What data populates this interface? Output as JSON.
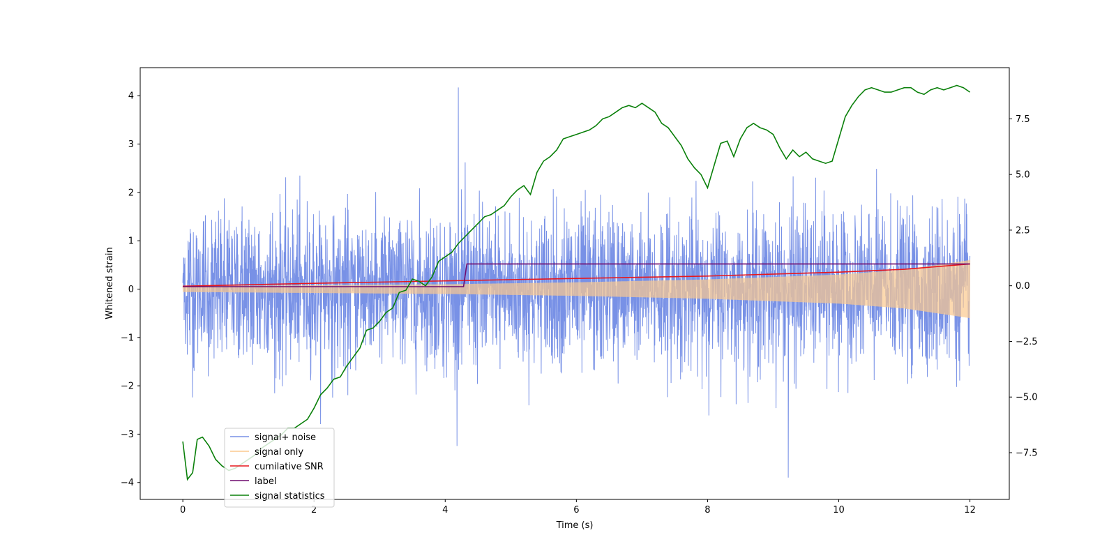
{
  "chart_data": {
    "type": "line",
    "xlabel": "Time (s)",
    "ylabel": "Whitened strain",
    "y2label": "",
    "xlim": [
      -0.65,
      12.6
    ],
    "ylim": [
      -4.35,
      4.58
    ],
    "y2lim": [
      -9.6,
      9.8
    ],
    "xticks": [
      0,
      2,
      4,
      6,
      8,
      10,
      12
    ],
    "yticks": [
      -4,
      -3,
      -2,
      -1,
      0,
      1,
      2,
      3,
      4
    ],
    "y2ticks": [
      -7.5,
      -5.0,
      -2.5,
      0.0,
      2.5,
      5.0,
      7.5
    ],
    "legend_position": "lower left",
    "series": [
      {
        "name": "signal+ noise",
        "axis": "left",
        "color": "#7891e6",
        "kind": "noise",
        "x_range": [
          0,
          12
        ],
        "typical_envelope": [
          -1.6,
          1.6
        ],
        "peak_max": 4.17,
        "peak_min": -3.9
      },
      {
        "name": "signal only",
        "axis": "left",
        "color": "#fbc98e",
        "kind": "chirp",
        "x": [
          0,
          2,
          4,
          6,
          8,
          10,
          11,
          12
        ],
        "amplitude": [
          0.06,
          0.08,
          0.1,
          0.14,
          0.2,
          0.3,
          0.4,
          0.6
        ]
      },
      {
        "name": "cumilative SNR",
        "axis": "left",
        "color": "#e8171c",
        "x": [
          0,
          2,
          4,
          6,
          8,
          10,
          11,
          12
        ],
        "values": [
          0.06,
          0.12,
          0.17,
          0.22,
          0.27,
          0.35,
          0.41,
          0.52
        ]
      },
      {
        "name": "label",
        "axis": "left",
        "color": "#6e0a6e",
        "x": [
          0,
          4.28,
          4.33,
          12
        ],
        "values": [
          0.05,
          0.05,
          0.52,
          0.52
        ]
      },
      {
        "name": "signal statistics",
        "axis": "right",
        "color": "#0a800a",
        "x": [
          0,
          0.07,
          0.15,
          0.22,
          0.3,
          0.4,
          0.5,
          0.6,
          0.7,
          0.8,
          0.9,
          1.0,
          1.1,
          1.2,
          1.3,
          1.4,
          1.5,
          1.6,
          1.7,
          1.8,
          1.9,
          2.0,
          2.1,
          2.2,
          2.3,
          2.4,
          2.5,
          2.6,
          2.7,
          2.8,
          2.9,
          3.0,
          3.1,
          3.2,
          3.3,
          3.4,
          3.5,
          3.6,
          3.7,
          3.8,
          3.9,
          4.0,
          4.1,
          4.2,
          4.3,
          4.4,
          4.5,
          4.6,
          4.7,
          4.8,
          4.9,
          5.0,
          5.1,
          5.2,
          5.3,
          5.4,
          5.5,
          5.6,
          5.7,
          5.8,
          5.9,
          6.0,
          6.1,
          6.2,
          6.3,
          6.4,
          6.5,
          6.6,
          6.7,
          6.8,
          6.9,
          7.0,
          7.1,
          7.2,
          7.3,
          7.4,
          7.5,
          7.6,
          7.7,
          7.8,
          7.9,
          8.0,
          8.1,
          8.2,
          8.3,
          8.4,
          8.5,
          8.6,
          8.7,
          8.8,
          8.9,
          9.0,
          9.1,
          9.2,
          9.3,
          9.4,
          9.5,
          9.6,
          9.7,
          9.8,
          9.9,
          10.0,
          10.1,
          10.2,
          10.3,
          10.4,
          10.5,
          10.6,
          10.7,
          10.8,
          10.9,
          11.0,
          11.1,
          11.2,
          11.3,
          11.4,
          11.5,
          11.6,
          11.7,
          11.8,
          11.9,
          12.0
        ],
        "values": [
          -7.0,
          -8.7,
          -8.4,
          -6.9,
          -6.8,
          -7.2,
          -7.8,
          -8.1,
          -8.3,
          -8.2,
          -8.0,
          -7.8,
          -7.6,
          -7.3,
          -7.1,
          -6.9,
          -6.7,
          -6.4,
          -6.4,
          -6.2,
          -6.0,
          -5.5,
          -4.9,
          -4.6,
          -4.2,
          -4.1,
          -3.6,
          -3.2,
          -2.8,
          -2.0,
          -1.9,
          -1.6,
          -1.2,
          -1.0,
          -0.3,
          -0.2,
          0.3,
          0.2,
          0.0,
          0.4,
          1.1,
          1.3,
          1.5,
          1.9,
          2.2,
          2.5,
          2.8,
          3.1,
          3.2,
          3.4,
          3.6,
          4.0,
          4.3,
          4.5,
          4.1,
          5.1,
          5.6,
          5.8,
          6.1,
          6.6,
          6.7,
          6.8,
          6.9,
          7.0,
          7.2,
          7.5,
          7.6,
          7.8,
          8.0,
          8.1,
          8.0,
          8.2,
          8.0,
          7.8,
          7.3,
          7.1,
          6.7,
          6.3,
          5.7,
          5.3,
          5.0,
          4.4,
          5.4,
          6.4,
          6.5,
          5.8,
          6.6,
          7.1,
          7.3,
          7.1,
          7.0,
          6.8,
          6.2,
          5.7,
          6.1,
          5.8,
          6.0,
          5.7,
          5.6,
          5.5,
          5.6,
          6.6,
          7.6,
          8.1,
          8.5,
          8.8,
          8.9,
          8.8,
          8.7,
          8.7,
          8.8,
          8.9,
          8.9,
          8.7,
          8.6,
          8.8,
          8.9,
          8.8,
          8.9,
          9.0,
          8.9,
          8.7
        ]
      }
    ]
  }
}
